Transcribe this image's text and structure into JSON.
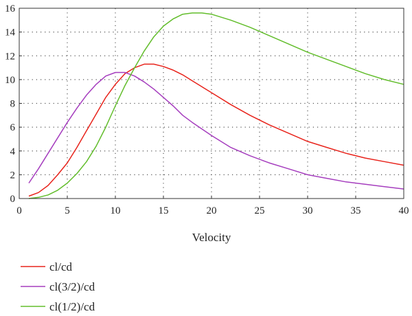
{
  "chart_data": {
    "type": "line",
    "title": "",
    "xlabel": "Velocity",
    "ylabel": "",
    "xlim": [
      0,
      40
    ],
    "ylim": [
      0,
      16
    ],
    "xticks": [
      0,
      5,
      10,
      15,
      20,
      25,
      30,
      35,
      40
    ],
    "yticks": [
      0,
      2,
      4,
      6,
      8,
      10,
      12,
      14,
      16
    ],
    "grid": "dotted",
    "legend_position": "below",
    "series": [
      {
        "name": "cl/cd",
        "color": "#e8231b",
        "x": [
          1,
          2,
          3,
          4,
          5,
          6,
          7,
          8,
          9,
          10,
          11,
          12,
          13,
          14,
          15,
          16,
          17,
          18,
          19,
          20,
          22,
          24,
          26,
          28,
          30,
          32,
          34,
          36,
          38,
          40
        ],
        "y": [
          0.2,
          0.5,
          1.1,
          2.0,
          3.0,
          4.3,
          5.7,
          7.1,
          8.5,
          9.6,
          10.5,
          11.0,
          11.3,
          11.3,
          11.1,
          10.8,
          10.4,
          9.9,
          9.4,
          8.9,
          7.9,
          7.0,
          6.2,
          5.5,
          4.8,
          4.3,
          3.8,
          3.4,
          3.1,
          2.8
        ]
      },
      {
        "name": "cl(3/2)/cd",
        "color": "#a53dbe",
        "x": [
          1,
          2,
          3,
          4,
          5,
          6,
          7,
          8,
          9,
          10,
          11,
          12,
          13,
          14,
          15,
          16,
          17,
          18,
          20,
          22,
          24,
          26,
          28,
          30,
          32,
          34,
          36,
          38,
          40
        ],
        "y": [
          1.3,
          2.5,
          3.8,
          5.1,
          6.4,
          7.6,
          8.7,
          9.6,
          10.3,
          10.6,
          10.6,
          10.3,
          9.8,
          9.2,
          8.5,
          7.8,
          7.0,
          6.4,
          5.3,
          4.3,
          3.6,
          3.0,
          2.5,
          2.0,
          1.7,
          1.4,
          1.2,
          1.0,
          0.8
        ]
      },
      {
        "name": "cl(1/2)/cd",
        "color": "#62bd2b",
        "x": [
          1,
          2,
          3,
          4,
          5,
          6,
          7,
          8,
          9,
          10,
          11,
          12,
          13,
          14,
          15,
          16,
          17,
          18,
          19,
          20,
          22,
          24,
          26,
          28,
          30,
          32,
          34,
          36,
          38,
          40
        ],
        "y": [
          0.0,
          0.1,
          0.3,
          0.7,
          1.3,
          2.1,
          3.1,
          4.4,
          6.0,
          7.8,
          9.5,
          11.0,
          12.4,
          13.6,
          14.5,
          15.1,
          15.5,
          15.6,
          15.6,
          15.5,
          15.0,
          14.4,
          13.7,
          13.0,
          12.3,
          11.7,
          11.1,
          10.5,
          10.0,
          9.6
        ]
      }
    ]
  }
}
